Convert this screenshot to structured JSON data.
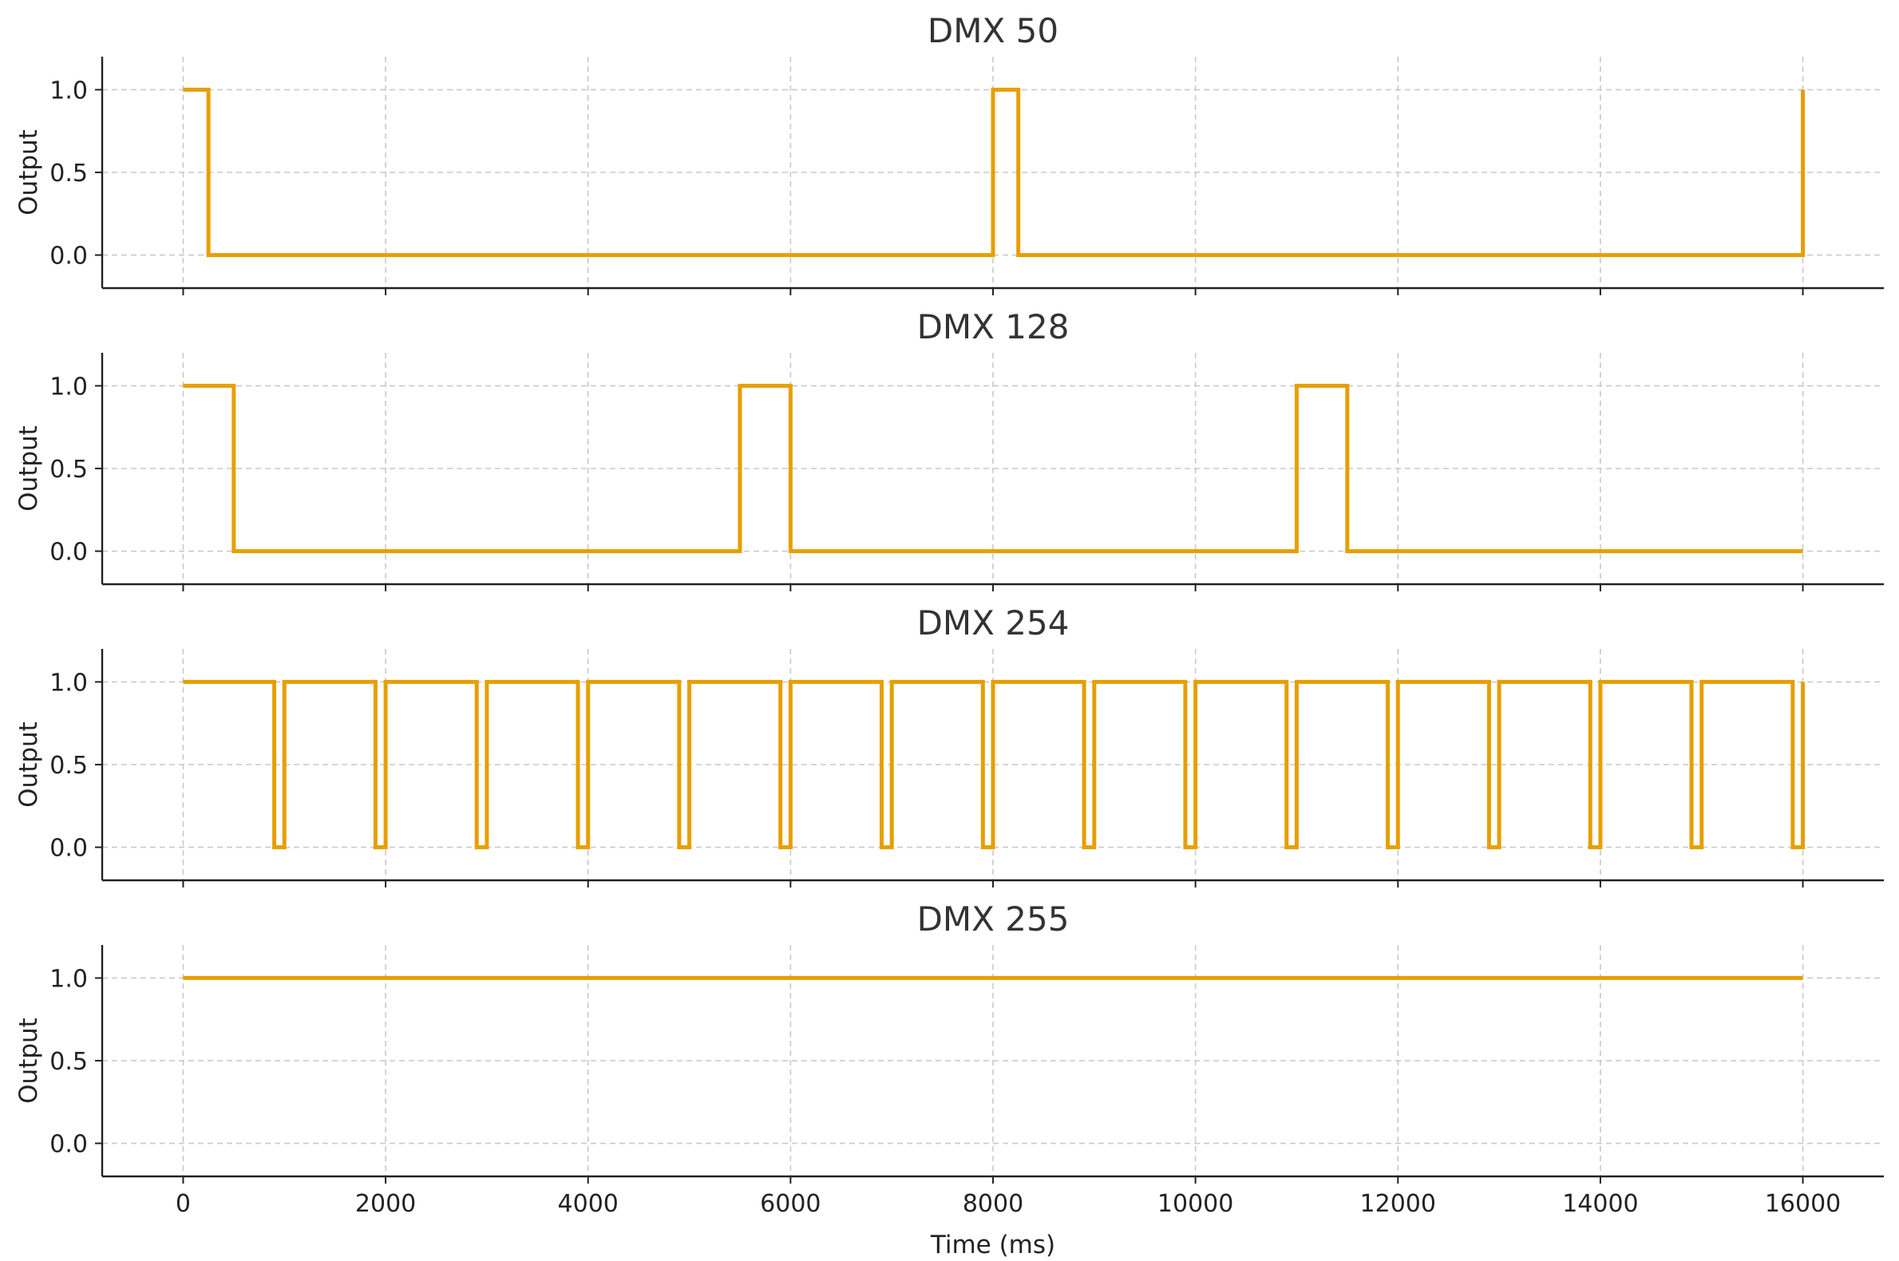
{
  "colors": {
    "trace": "#E69F00"
  },
  "chart_data": [
    {
      "type": "line",
      "title": "DMX 50",
      "ylabel": "Output",
      "xlabel": "",
      "xlim": [
        -800,
        16800
      ],
      "ylim": [
        -0.2,
        1.2
      ],
      "yticks": [
        "0.0",
        "0.5",
        "1.0"
      ],
      "xticks": [
        "0",
        "2000",
        "4000",
        "6000",
        "8000",
        "10000",
        "12000",
        "14000",
        "16000"
      ],
      "show_xticklabels": false,
      "grid": true,
      "series": [
        {
          "x": [
            0,
            250,
            250,
            8000,
            8000,
            8250,
            8250,
            16000,
            16000
          ],
          "y": [
            1,
            1,
            0,
            0,
            1,
            1,
            0,
            0,
            1
          ]
        }
      ]
    },
    {
      "type": "line",
      "title": "DMX 128",
      "ylabel": "Output",
      "xlabel": "",
      "xlim": [
        -800,
        16800
      ],
      "ylim": [
        -0.2,
        1.2
      ],
      "yticks": [
        "0.0",
        "0.5",
        "1.0"
      ],
      "xticks": [
        "0",
        "2000",
        "4000",
        "6000",
        "8000",
        "10000",
        "12000",
        "14000",
        "16000"
      ],
      "show_xticklabels": false,
      "grid": true,
      "series": [
        {
          "x": [
            0,
            500,
            500,
            5500,
            5500,
            6000,
            6000,
            11000,
            11000,
            11500,
            11500,
            16000
          ],
          "y": [
            1,
            1,
            0,
            0,
            1,
            1,
            0,
            0,
            1,
            1,
            0,
            0
          ]
        }
      ]
    },
    {
      "type": "line",
      "title": "DMX 254",
      "ylabel": "Output",
      "xlabel": "",
      "xlim": [
        -800,
        16800
      ],
      "ylim": [
        -0.2,
        1.2
      ],
      "yticks": [
        "0.0",
        "0.5",
        "1.0"
      ],
      "xticks": [
        "0",
        "2000",
        "4000",
        "6000",
        "8000",
        "10000",
        "12000",
        "14000",
        "16000"
      ],
      "show_xticklabels": false,
      "grid": true,
      "series": [
        {
          "x": [
            0,
            900,
            900,
            1000,
            1000,
            1900,
            1900,
            2000,
            2000,
            2900,
            2900,
            3000,
            3000,
            3900,
            3900,
            4000,
            4000,
            4900,
            4900,
            5000,
            5000,
            5900,
            5900,
            6000,
            6000,
            6900,
            6900,
            7000,
            7000,
            7900,
            7900,
            8000,
            8000,
            8900,
            8900,
            9000,
            9000,
            9900,
            9900,
            10000,
            10000,
            10900,
            10900,
            11000,
            11000,
            11900,
            11900,
            12000,
            12000,
            12900,
            12900,
            13000,
            13000,
            13900,
            13900,
            14000,
            14000,
            14900,
            14900,
            15000,
            15000,
            15900,
            15900,
            16000,
            16000
          ],
          "y": [
            1,
            1,
            0,
            0,
            1,
            1,
            0,
            0,
            1,
            1,
            0,
            0,
            1,
            1,
            0,
            0,
            1,
            1,
            0,
            0,
            1,
            1,
            0,
            0,
            1,
            1,
            0,
            0,
            1,
            1,
            0,
            0,
            1,
            1,
            0,
            0,
            1,
            1,
            0,
            0,
            1,
            1,
            0,
            0,
            1,
            1,
            0,
            0,
            1,
            1,
            0,
            0,
            1,
            1,
            0,
            0,
            1,
            1,
            0,
            0,
            1,
            1,
            0,
            0,
            1
          ]
        }
      ]
    },
    {
      "type": "line",
      "title": "DMX 255",
      "ylabel": "Output",
      "xlabel": "Time (ms)",
      "xlim": [
        -800,
        16800
      ],
      "ylim": [
        -0.2,
        1.2
      ],
      "yticks": [
        "0.0",
        "0.5",
        "1.0"
      ],
      "xticks": [
        "0",
        "2000",
        "4000",
        "6000",
        "8000",
        "10000",
        "12000",
        "14000",
        "16000"
      ],
      "show_xticklabels": true,
      "grid": true,
      "series": [
        {
          "x": [
            0,
            16000
          ],
          "y": [
            1,
            1
          ]
        }
      ]
    }
  ]
}
